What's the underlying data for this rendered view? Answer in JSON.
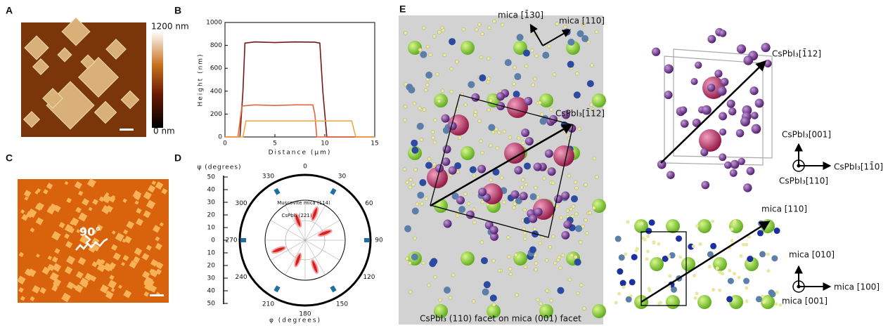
{
  "chart_data": {
    "type": "line",
    "xlabel": "Distance (μm)",
    "ylabel": "Height (nm)",
    "xlim": [
      0,
      15
    ],
    "xticks": [
      0,
      5,
      10,
      15
    ],
    "ylim": [
      0,
      1000
    ],
    "yticks": [
      0,
      200,
      400,
      600,
      800,
      1000
    ],
    "series": [
      {
        "color": "#7a1616",
        "x": [
          0,
          1.5,
          1.8,
          2,
          3,
          5,
          7,
          9,
          9.5,
          9.8,
          10.2,
          15
        ],
        "values": [
          0,
          0,
          400,
          820,
          830,
          825,
          830,
          828,
          820,
          400,
          0,
          0
        ]
      },
      {
        "color": "#e2673a",
        "x": [
          0,
          1.3,
          1.7,
          3,
          5,
          7,
          8.8,
          9,
          9.2,
          15
        ],
        "values": [
          0,
          0,
          270,
          280,
          275,
          280,
          280,
          200,
          0,
          0
        ]
      },
      {
        "color": "#f3a848",
        "x": [
          0,
          1.8,
          2.1,
          5,
          9,
          12.7,
          13.1,
          15
        ],
        "values": [
          0,
          0,
          140,
          140,
          140,
          140,
          0,
          0
        ]
      }
    ]
  },
  "panels": {
    "A": {
      "label": "A",
      "colorbar_max": "1200 nm",
      "colorbar_min": "0 nm"
    },
    "B": {
      "label": "B"
    },
    "C": {
      "label": "C",
      "angle": "90°"
    },
    "D": {
      "label": "D",
      "ylabel": "ψ (degrees)",
      "xlabel": "φ (degrees)",
      "psi_ticks": [
        50,
        40,
        30,
        20,
        10,
        0,
        10,
        20,
        30,
        40,
        50
      ],
      "phi_ticks": [
        0,
        30,
        60,
        90,
        120,
        150,
        180,
        210,
        240,
        270,
        300,
        330
      ],
      "outer_label": "Muscovite mica (114)",
      "inner_label": "CsPbI₃ (221)"
    },
    "E": {
      "label": "E",
      "mica_130": "mica [1̄30]",
      "mica_110_top": "mica [110]",
      "cspbi3_112_left": "CsPbI₃[1̄12]",
      "caption": "CsPbI₃ (110) facet on mica (001) facet",
      "cspbi3_112_right": "CsPbI₃[1̄12]",
      "cspbi3_001": "CsPbI₃[001]",
      "cspbi3_1m10": "CsPbI₃[11̄0]",
      "cspbi3_110": "CsPbI₃[110]",
      "mica_110_right": "mica [110]",
      "mica_010": "mica [010]",
      "mica_100": "mica [100]",
      "mica_001": "mica [001]"
    }
  }
}
